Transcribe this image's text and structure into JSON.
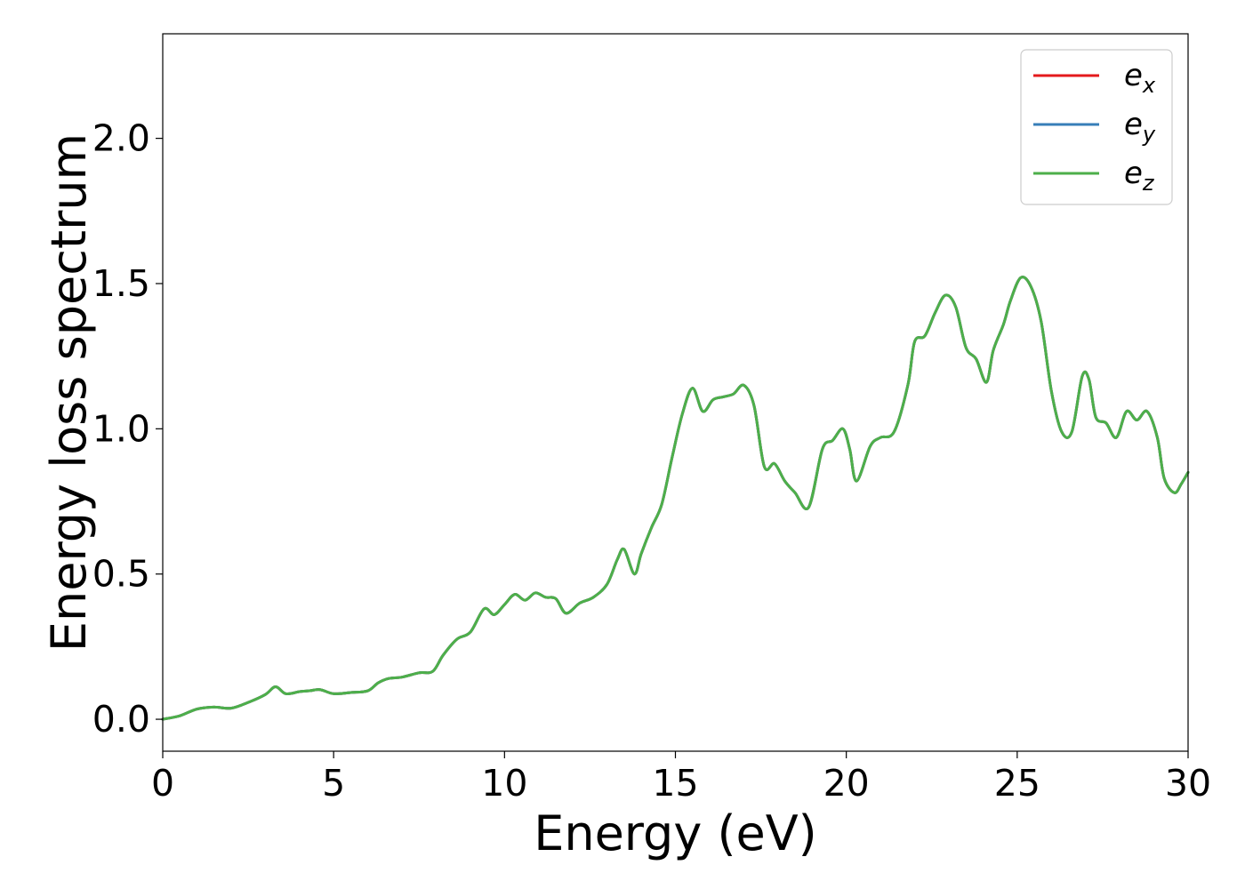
{
  "chart_data": {
    "type": "line",
    "title": "",
    "xlabel": "Energy (eV)",
    "ylabel": "Energy loss spectrum",
    "xlim": [
      0,
      30
    ],
    "ylim": [
      -0.11,
      2.36
    ],
    "xticks": [
      0,
      5,
      10,
      15,
      20,
      25,
      30
    ],
    "xtick_labels": [
      "0",
      "5",
      "10",
      "15",
      "20",
      "25",
      "30"
    ],
    "yticks": [
      0.0,
      0.5,
      1.0,
      1.5,
      2.0
    ],
    "ytick_labels": [
      "0.0",
      "0.5",
      "1.0",
      "1.5",
      "2.0"
    ],
    "grid": false,
    "legend_placement": "top-right",
    "x": [
      0,
      0.5,
      1.0,
      1.5,
      2.0,
      2.5,
      3.0,
      3.3,
      3.6,
      4.0,
      4.3,
      4.6,
      5.0,
      5.5,
      6.0,
      6.3,
      6.6,
      7.0,
      7.5,
      7.9,
      8.2,
      8.6,
      9.0,
      9.4,
      9.7,
      10.0,
      10.3,
      10.6,
      10.9,
      11.2,
      11.5,
      11.8,
      12.2,
      12.6,
      13.0,
      13.3,
      13.5,
      13.8,
      14.0,
      14.3,
      14.6,
      14.9,
      15.2,
      15.5,
      15.8,
      16.1,
      16.4,
      16.7,
      17.0,
      17.3,
      17.6,
      17.9,
      18.2,
      18.5,
      18.9,
      19.3,
      19.6,
      19.9,
      20.1,
      20.3,
      20.7,
      21.0,
      21.4,
      21.8,
      22.0,
      22.3,
      22.6,
      22.9,
      23.2,
      23.5,
      23.8,
      24.1,
      24.3,
      24.6,
      24.8,
      25.1,
      25.4,
      25.7,
      26.0,
      26.3,
      26.6,
      26.9,
      27.1,
      27.3,
      27.6,
      27.9,
      28.2,
      28.5,
      28.8,
      29.1,
      29.3,
      29.6,
      29.8,
      30.0
    ],
    "series": [
      {
        "name": "e_x",
        "name_base": "e",
        "name_sub": "x",
        "color": "#e41a1c",
        "values": [
          0.0,
          0.012,
          0.035,
          0.042,
          0.038,
          0.058,
          0.085,
          0.112,
          0.088,
          0.095,
          0.098,
          0.102,
          0.088,
          0.092,
          0.098,
          0.125,
          0.14,
          0.145,
          0.16,
          0.165,
          0.22,
          0.275,
          0.3,
          0.38,
          0.36,
          0.395,
          0.43,
          0.41,
          0.435,
          0.42,
          0.415,
          0.365,
          0.4,
          0.42,
          0.465,
          0.55,
          0.585,
          0.5,
          0.57,
          0.66,
          0.74,
          0.9,
          1.05,
          1.14,
          1.06,
          1.1,
          1.11,
          1.12,
          1.15,
          1.08,
          0.87,
          0.88,
          0.82,
          0.78,
          0.73,
          0.93,
          0.96,
          1.0,
          0.93,
          0.82,
          0.94,
          0.97,
          0.99,
          1.15,
          1.3,
          1.32,
          1.4,
          1.46,
          1.42,
          1.28,
          1.24,
          1.16,
          1.27,
          1.36,
          1.44,
          1.52,
          1.49,
          1.37,
          1.13,
          0.99,
          0.99,
          1.18,
          1.17,
          1.04,
          1.02,
          0.97,
          1.06,
          1.03,
          1.06,
          0.97,
          0.83,
          0.78,
          0.81,
          0.85
        ]
      },
      {
        "name": "e_y",
        "name_base": "e",
        "name_sub": "y",
        "color": "#377eb8",
        "values": [
          0.0,
          0.012,
          0.035,
          0.042,
          0.038,
          0.058,
          0.085,
          0.112,
          0.088,
          0.095,
          0.098,
          0.102,
          0.088,
          0.092,
          0.098,
          0.125,
          0.14,
          0.145,
          0.16,
          0.165,
          0.22,
          0.275,
          0.3,
          0.38,
          0.36,
          0.395,
          0.43,
          0.41,
          0.435,
          0.42,
          0.415,
          0.365,
          0.4,
          0.42,
          0.465,
          0.55,
          0.585,
          0.5,
          0.57,
          0.66,
          0.74,
          0.9,
          1.05,
          1.14,
          1.06,
          1.1,
          1.11,
          1.12,
          1.15,
          1.08,
          0.87,
          0.88,
          0.82,
          0.78,
          0.73,
          0.93,
          0.96,
          1.0,
          0.93,
          0.82,
          0.94,
          0.97,
          0.99,
          1.15,
          1.3,
          1.32,
          1.4,
          1.46,
          1.42,
          1.28,
          1.24,
          1.16,
          1.27,
          1.36,
          1.44,
          1.52,
          1.49,
          1.37,
          1.13,
          0.99,
          0.99,
          1.18,
          1.17,
          1.04,
          1.02,
          0.97,
          1.06,
          1.03,
          1.06,
          0.97,
          0.83,
          0.78,
          0.81,
          0.85
        ]
      },
      {
        "name": "e_z",
        "name_base": "e",
        "name_sub": "z",
        "color": "#4daf4a",
        "values": [
          0.0,
          0.012,
          0.035,
          0.042,
          0.038,
          0.058,
          0.085,
          0.112,
          0.088,
          0.095,
          0.098,
          0.102,
          0.088,
          0.092,
          0.098,
          0.125,
          0.14,
          0.145,
          0.16,
          0.165,
          0.22,
          0.275,
          0.3,
          0.38,
          0.36,
          0.395,
          0.43,
          0.41,
          0.435,
          0.42,
          0.415,
          0.365,
          0.4,
          0.42,
          0.465,
          0.55,
          0.585,
          0.5,
          0.57,
          0.66,
          0.74,
          0.9,
          1.05,
          1.14,
          1.06,
          1.1,
          1.11,
          1.12,
          1.15,
          1.08,
          0.87,
          0.88,
          0.82,
          0.78,
          0.73,
          0.93,
          0.96,
          1.0,
          0.93,
          0.82,
          0.94,
          0.97,
          0.99,
          1.15,
          1.3,
          1.32,
          1.4,
          1.46,
          1.42,
          1.28,
          1.24,
          1.16,
          1.27,
          1.36,
          1.44,
          1.52,
          1.49,
          1.37,
          1.13,
          0.99,
          0.99,
          1.18,
          1.17,
          1.04,
          1.02,
          0.97,
          1.06,
          1.03,
          1.06,
          0.97,
          0.83,
          0.78,
          0.81,
          0.85
        ]
      }
    ]
  }
}
